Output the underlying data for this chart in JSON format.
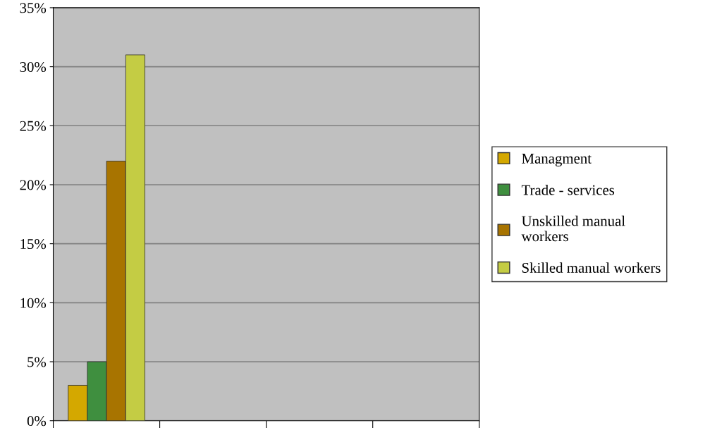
{
  "chart_data": {
    "type": "bar",
    "categories": [
      null,
      null,
      null,
      null
    ],
    "series": [
      {
        "name": "Managment",
        "color": "#d4a800",
        "values": [
          3,
          null,
          null,
          null
        ]
      },
      {
        "name": "Trade - services",
        "color": "#3f8f3f",
        "values": [
          5,
          null,
          null,
          null
        ]
      },
      {
        "name": "Unskilled manual workers",
        "color": "#a87400",
        "values": [
          22,
          null,
          null,
          null
        ]
      },
      {
        "name": "Skilled manual workers",
        "color": "#c4cc44",
        "values": [
          31,
          null,
          null,
          null
        ]
      }
    ],
    "ylim": [
      0,
      35
    ],
    "yticks": [
      {
        "value": 0,
        "label": "0%"
      },
      {
        "value": 5,
        "label": "5%"
      },
      {
        "value": 10,
        "label": "10%"
      },
      {
        "value": 15,
        "label": "15%"
      },
      {
        "value": 20,
        "label": "20%"
      },
      {
        "value": 25,
        "label": "25%"
      },
      {
        "value": 30,
        "label": "30%"
      },
      {
        "value": 35,
        "label": "35%"
      }
    ],
    "grid": "y",
    "legend": "right"
  }
}
